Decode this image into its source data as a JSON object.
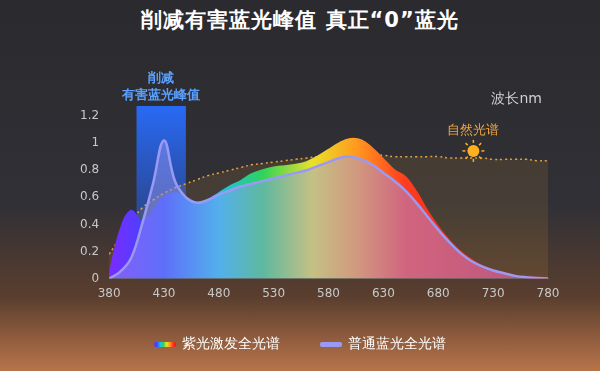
{
  "chart_data": {
    "type": "line",
    "title": "削减有害蓝光峰值 真正“0”蓝光",
    "x_label": "波长nm",
    "x": [
      380,
      390,
      400,
      410,
      420,
      430,
      440,
      450,
      460,
      470,
      480,
      490,
      500,
      510,
      520,
      530,
      540,
      550,
      560,
      570,
      580,
      590,
      600,
      610,
      620,
      630,
      640,
      650,
      660,
      670,
      680,
      690,
      700,
      710,
      720,
      730,
      740,
      750,
      760,
      770,
      780
    ],
    "series": [
      {
        "name": "自然光谱",
        "color": "#e6a23c",
        "line_style": "dotted",
        "values": [
          0.18,
          0.3,
          0.42,
          0.52,
          0.58,
          0.63,
          0.67,
          0.7,
          0.73,
          0.76,
          0.78,
          0.8,
          0.82,
          0.84,
          0.85,
          0.86,
          0.87,
          0.88,
          0.89,
          0.9,
          0.9,
          0.91,
          0.91,
          0.91,
          0.91,
          0.91,
          0.9,
          0.9,
          0.9,
          0.9,
          0.9,
          0.89,
          0.89,
          0.89,
          0.89,
          0.88,
          0.88,
          0.88,
          0.88,
          0.87,
          0.87
        ]
      },
      {
        "name": "紫光激发全光谱",
        "color": "#ff3b1f",
        "values": [
          0.02,
          0.35,
          0.5,
          0.42,
          0.5,
          0.6,
          0.63,
          0.6,
          0.56,
          0.58,
          0.63,
          0.68,
          0.72,
          0.77,
          0.8,
          0.82,
          0.83,
          0.84,
          0.86,
          0.9,
          0.95,
          1.0,
          1.03,
          1.02,
          0.96,
          0.88,
          0.8,
          0.75,
          0.64,
          0.5,
          0.38,
          0.28,
          0.2,
          0.14,
          0.09,
          0.06,
          0.04,
          0.02,
          0.01,
          0.005,
          0
        ]
      },
      {
        "name": "普通蓝光全光谱",
        "color": "#9a9af5",
        "values": [
          0,
          0.05,
          0.15,
          0.4,
          0.7,
          1.02,
          0.72,
          0.6,
          0.56,
          0.58,
          0.62,
          0.65,
          0.68,
          0.7,
          0.72,
          0.74,
          0.76,
          0.78,
          0.8,
          0.83,
          0.86,
          0.89,
          0.9,
          0.88,
          0.84,
          0.78,
          0.72,
          0.65,
          0.56,
          0.46,
          0.36,
          0.27,
          0.19,
          0.13,
          0.09,
          0.06,
          0.04,
          0.02,
          0.01,
          0.005,
          0
        ]
      }
    ],
    "legend_series": [
      "紫光激发全光谱",
      "普通蓝光全光谱"
    ],
    "annotations": [
      {
        "text": [
          "削减",
          "有害蓝光峰值"
        ],
        "x_range": [
          405,
          450
        ]
      },
      {
        "text": "自然光谱",
        "x": 712,
        "y": 1.09
      }
    ],
    "xlim": [
      380,
      780
    ],
    "xticks": [
      380,
      430,
      480,
      530,
      580,
      630,
      680,
      730,
      780
    ],
    "ylim": [
      0,
      1.2
    ],
    "yticks": [
      0,
      0.2,
      0.4,
      0.6,
      0.8,
      1,
      1.2
    ],
    "grid": false,
    "legend": "bottom"
  }
}
